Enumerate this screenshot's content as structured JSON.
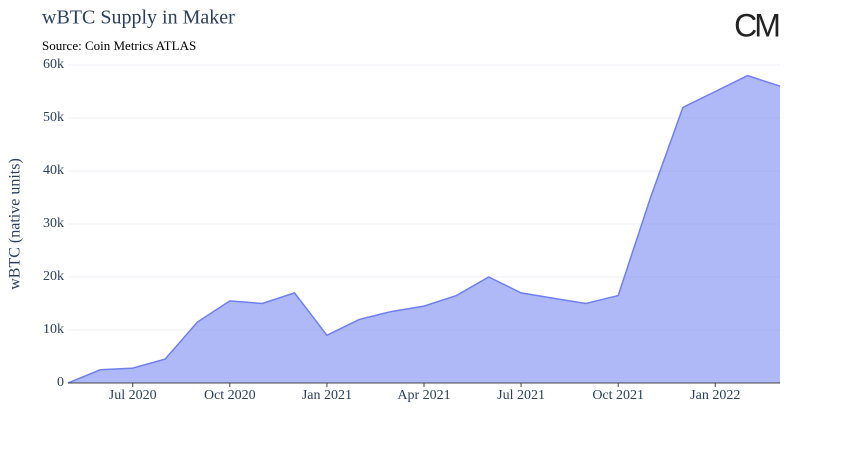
{
  "chart_data": {
    "type": "area",
    "title": "wBTC Supply in Maker",
    "subtitle": "Source: Coin Metrics ATLAS",
    "logo": "CM",
    "y_label": "wBTC (native units)",
    "x": [
      "2020-05",
      "2020-06",
      "2020-07",
      "2020-08",
      "2020-09",
      "2020-10",
      "2020-11",
      "2020-12",
      "2021-01",
      "2021-02",
      "2021-03",
      "2021-04",
      "2021-05",
      "2021-06",
      "2021-07",
      "2021-08",
      "2021-09",
      "2021-10",
      "2021-11",
      "2021-12",
      "2022-01",
      "2022-02",
      "2022-03"
    ],
    "series": [
      {
        "name": "wBTC Supply",
        "color": "#6f7ff0",
        "values": [
          0,
          2500,
          2800,
          4500,
          11500,
          15500,
          15000,
          17000,
          9000,
          12000,
          13500,
          14500,
          16500,
          20000,
          17000,
          16000,
          15000,
          16500,
          35000,
          52000,
          55000,
          58000,
          56000
        ]
      }
    ],
    "xlim": [
      "2020-05",
      "2022-03"
    ],
    "xticks": [
      {
        "value": "2020-07",
        "label": "Jul 2020"
      },
      {
        "value": "2020-10",
        "label": "Oct 2020"
      },
      {
        "value": "2021-01",
        "label": "Jan 2021"
      },
      {
        "value": "2021-04",
        "label": "Apr 2021"
      },
      {
        "value": "2021-07",
        "label": "Jul 2021"
      },
      {
        "value": "2021-10",
        "label": "Oct 2021"
      },
      {
        "value": "2022-01",
        "label": "Jan 2022"
      }
    ],
    "ylim": [
      0,
      60000
    ],
    "yticks": [
      0,
      {
        "value": 10000,
        "label": "10k"
      },
      {
        "value": 20000,
        "label": "20k"
      },
      {
        "value": 30000,
        "label": "30k"
      },
      {
        "value": 40000,
        "label": "40k"
      },
      {
        "value": 50000,
        "label": "50k"
      },
      {
        "value": 60000,
        "label": "60k"
      }
    ],
    "grid": true
  }
}
